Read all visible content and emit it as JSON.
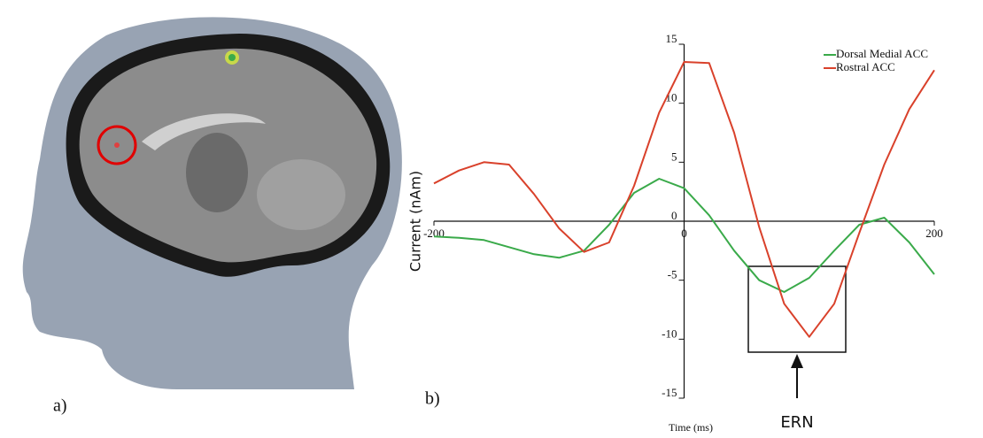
{
  "panels": {
    "a": "a)",
    "b": "b)"
  },
  "chart_data": {
    "type": "line",
    "xlabel": "Time (ms)",
    "ylabel": "Current (nAm)",
    "x": [
      -200,
      -180,
      -160,
      -140,
      -120,
      -100,
      -80,
      -60,
      -40,
      -20,
      0,
      20,
      40,
      60,
      80,
      100,
      120,
      140,
      160,
      180,
      200
    ],
    "series": [
      {
        "name": "Dorsal Medial ACC",
        "color": "#3aaa4a",
        "values": [
          -1.3,
          -1.4,
          -1.6,
          -2.2,
          -2.8,
          -3.1,
          -2.5,
          -0.3,
          2.4,
          3.6,
          2.8,
          0.5,
          -2.5,
          -5.0,
          -6.0,
          -4.8,
          -2.5,
          -0.3,
          0.3,
          -1.8,
          -4.5
        ]
      },
      {
        "name": "Rostral ACC",
        "color": "#d9412b",
        "values": [
          3.2,
          4.3,
          5.0,
          4.8,
          2.3,
          -0.6,
          -2.6,
          -1.8,
          3.0,
          9.2,
          13.5,
          13.4,
          7.5,
          -0.5,
          -7.0,
          -9.8,
          -7.0,
          -1.0,
          4.8,
          9.5,
          12.8
        ]
      }
    ],
    "xlim": [
      -200,
      200
    ],
    "xticks": [
      -200,
      0,
      200
    ],
    "ylim": [
      -15,
      15
    ],
    "yticks": [
      15,
      10,
      5,
      0,
      -5,
      -10,
      -15
    ],
    "legend": "top-right",
    "annotations": [
      "ERN"
    ]
  }
}
